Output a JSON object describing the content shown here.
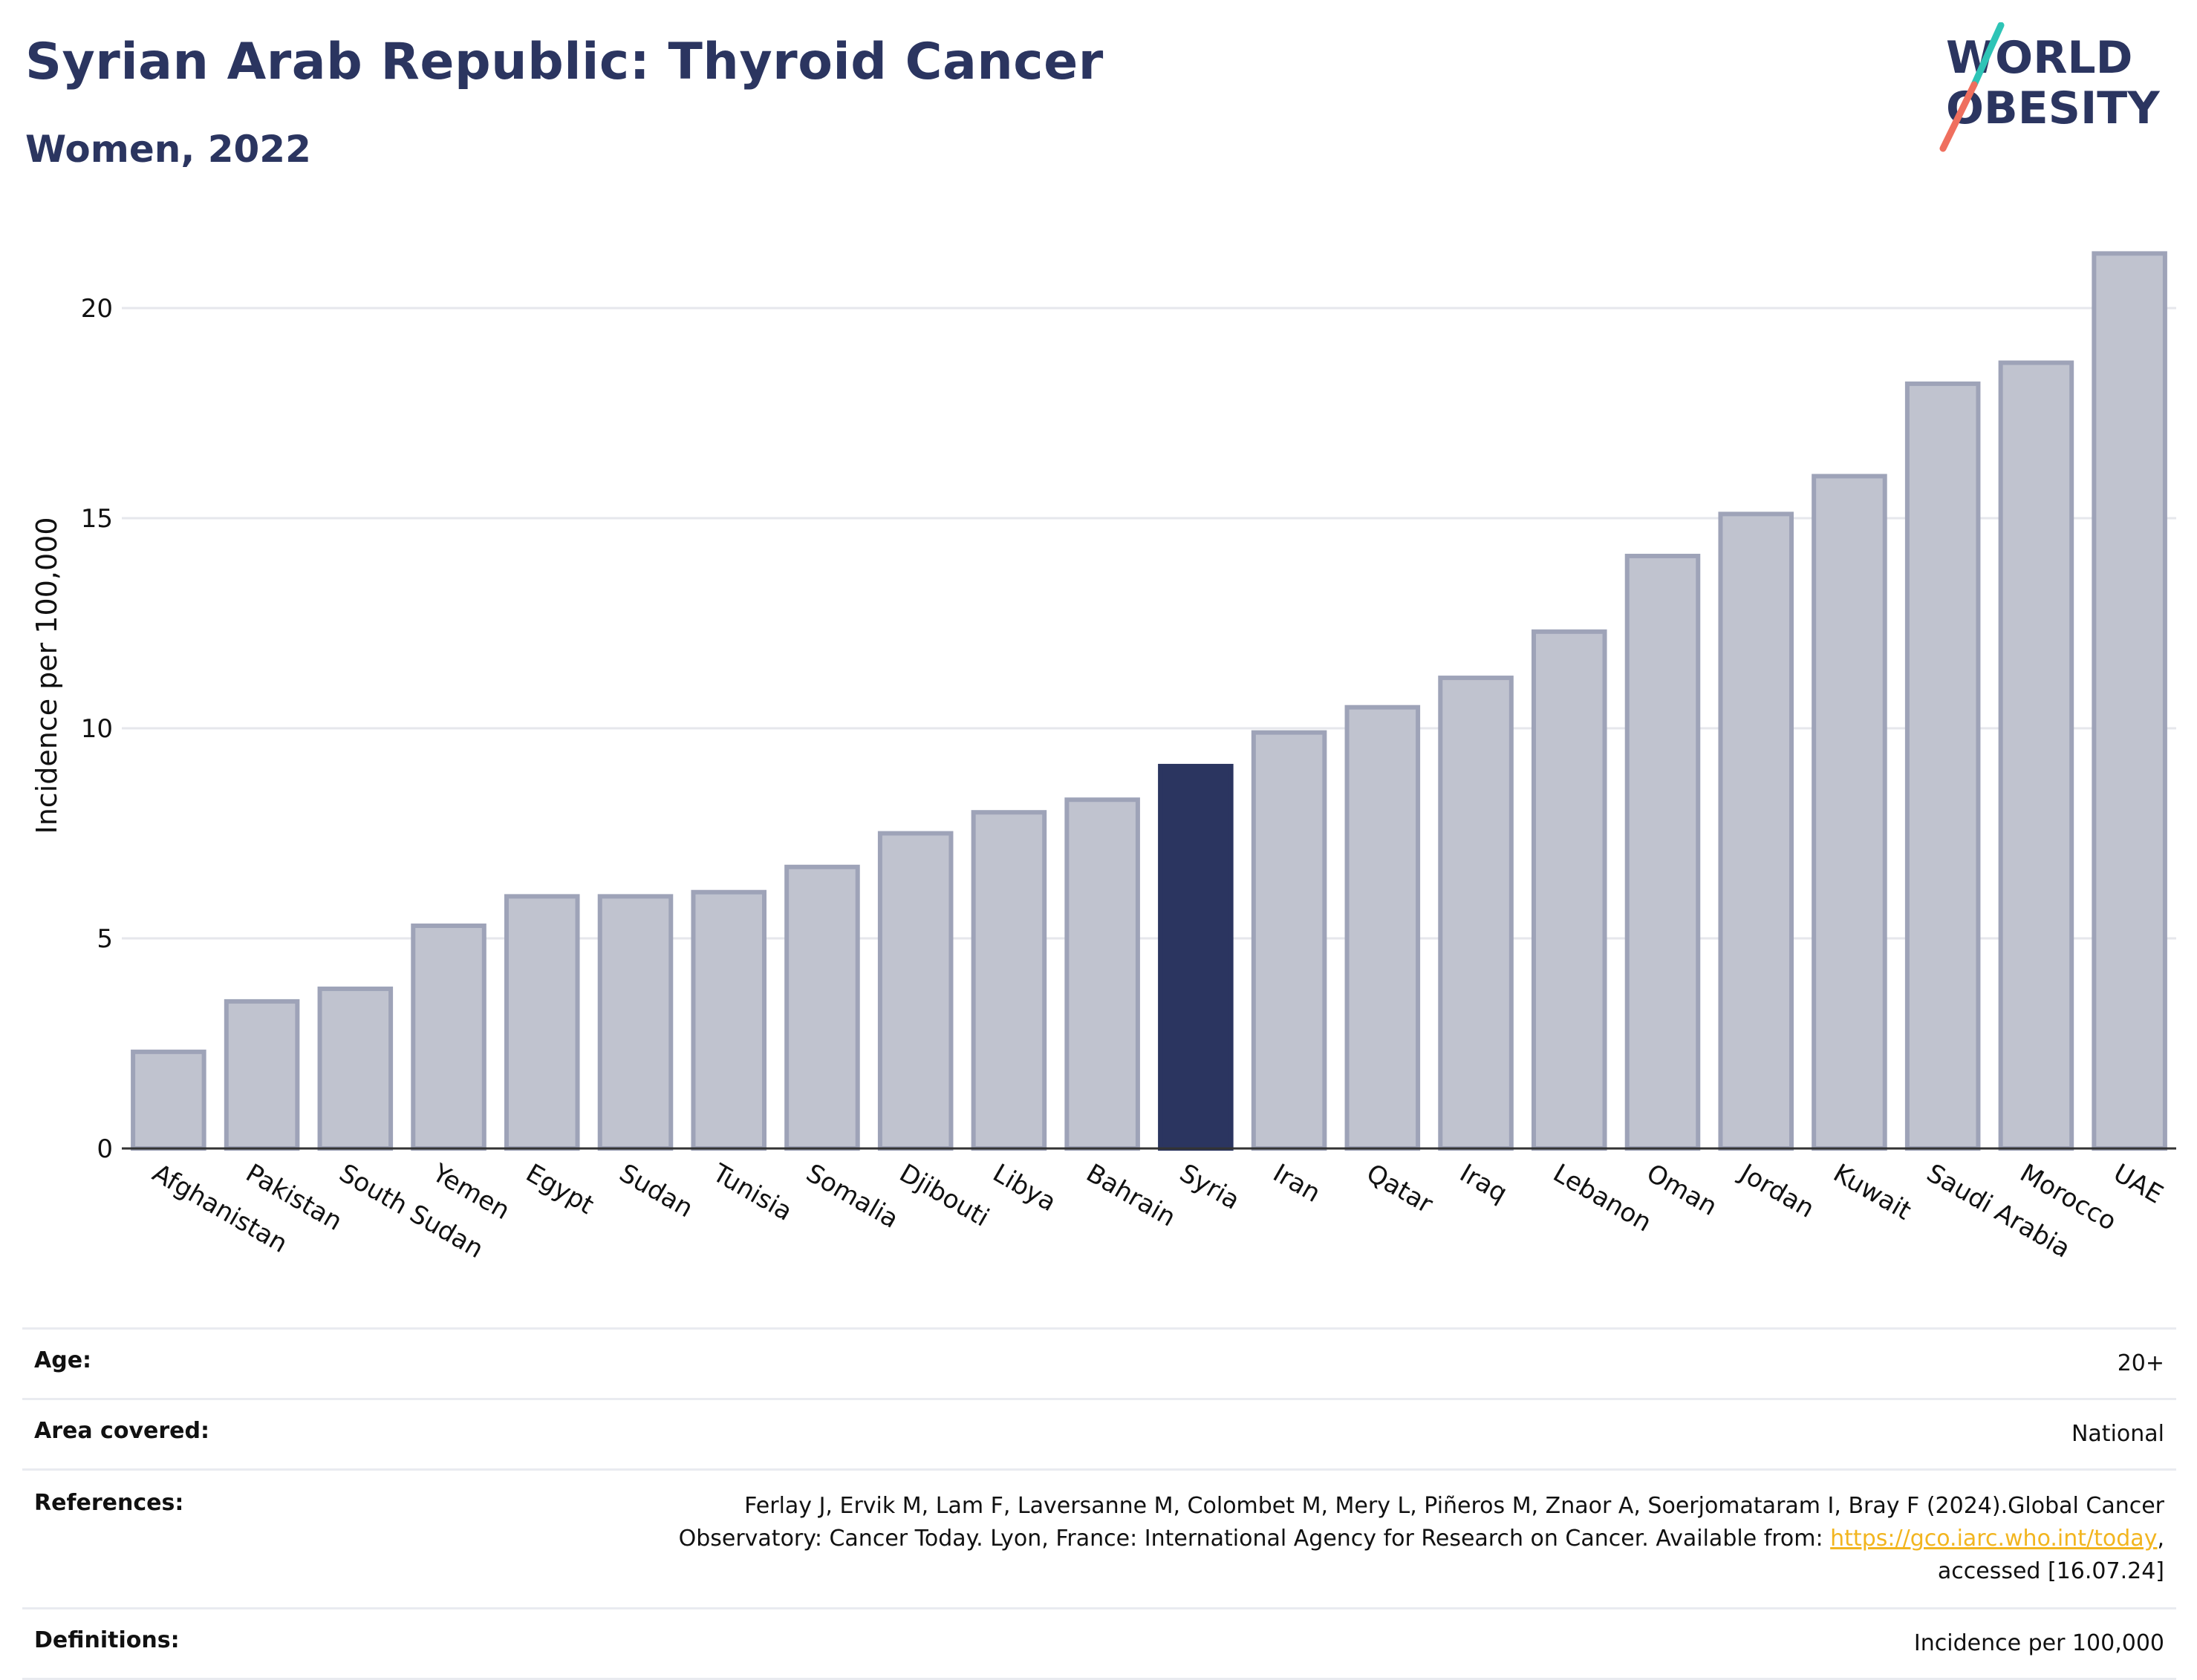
{
  "header": {
    "title": "Syrian Arab Republic: Thyroid Cancer",
    "subtitle": "Women, 2022"
  },
  "logo": {
    "line1": "WORLD",
    "line2": "OBESITY",
    "colors": {
      "text": "#2b3560",
      "slash_top": "#2ec4b6",
      "slash_bottom": "#ef6f5e"
    }
  },
  "chart_data": {
    "type": "bar",
    "title": "Syrian Arab Republic: Thyroid Cancer",
    "subtitle": "Women, 2022",
    "ylabel": "Incidence per 100,000",
    "xlabel": "",
    "ylim": [
      0,
      22
    ],
    "yticks": [
      0,
      5,
      10,
      15,
      20
    ],
    "grid": true,
    "highlight": "Syria",
    "colors": {
      "bar": "#c0c3cf",
      "bar_border": "#9ea3b8",
      "highlight": "#2b3560"
    },
    "categories": [
      "Afghanistan",
      "Pakistan",
      "South Sudan",
      "Yemen",
      "Egypt",
      "Sudan",
      "Tunisia",
      "Somalia",
      "Djibouti",
      "Libya",
      "Bahrain",
      "Syria",
      "Iran",
      "Qatar",
      "Iraq",
      "Lebanon",
      "Oman",
      "Jordan",
      "Kuwait",
      "Saudi Arabia",
      "Morocco",
      "UAE"
    ],
    "values": [
      2.3,
      3.5,
      3.8,
      5.3,
      6.0,
      6.0,
      6.1,
      6.7,
      7.5,
      8.0,
      8.3,
      9.1,
      9.9,
      10.5,
      11.2,
      12.3,
      14.1,
      15.1,
      16.0,
      18.2,
      18.7,
      21.3
    ]
  },
  "info": {
    "age_label": "Age:",
    "age_value": "20+",
    "area_label": "Area covered:",
    "area_value": "National",
    "refs_label": "References:",
    "refs_line1": "Ferlay J, Ervik M, Lam F, Laversanne M, Colombet M, Mery L, Piñeros M, Znaor A, Soerjomataram I, Bray F (2024).Global Cancer",
    "refs_line2_pre": "Observatory: Cancer Today. Lyon, France: International Agency for Research on Cancer. Available from: ",
    "refs_link": "https://gco.iarc.who.int/today",
    "refs_line2_post": ",",
    "refs_line3": "accessed [16.07.24]",
    "def_label": "Definitions:",
    "def_value": "Incidence per 100,000"
  }
}
